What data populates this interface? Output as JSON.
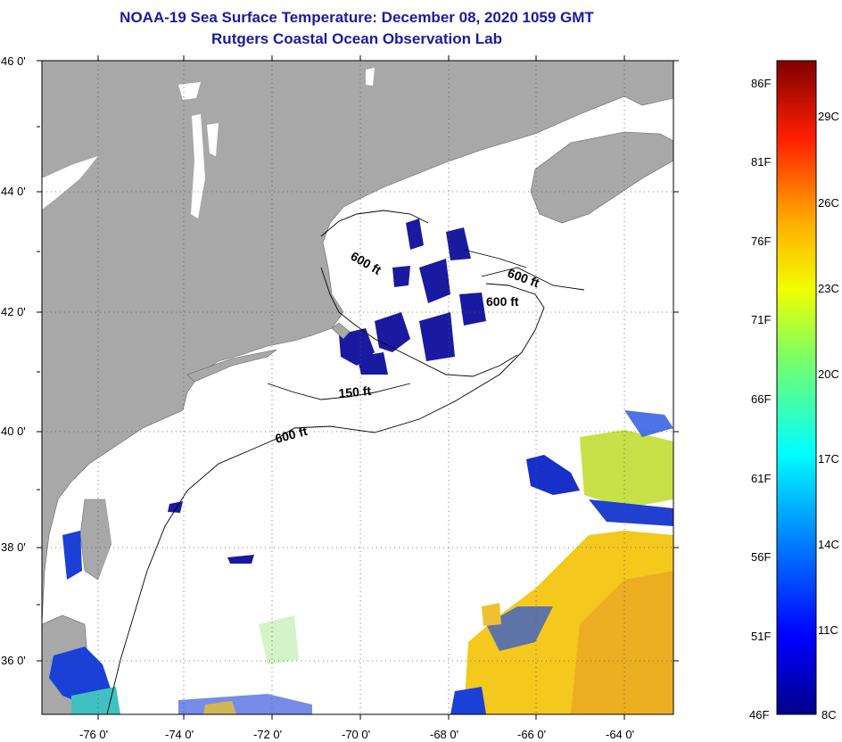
{
  "title": {
    "line1": "NOAA-19 Sea Surface Temperature:  December 08, 2020 1059 GMT",
    "line2": "Rutgers Coastal Ocean Observation Lab"
  },
  "axes": {
    "lat_labels": [
      "46 0'",
      "44 0'",
      "42 0'",
      "40 0'",
      "38 0'",
      "36 0'"
    ],
    "lon_labels": [
      "-76 0'",
      "-74 0'",
      "-72 0'",
      "-70 0'",
      "-68 0'",
      "-66 0'",
      "-64 0'"
    ]
  },
  "contours": {
    "label_600_a": "600 ft",
    "label_600_b": "600 ft",
    "label_600_c": "600 ft",
    "label_150": "150 ft",
    "label_600_d": "600 ft"
  },
  "colorbar": {
    "fahrenheit": [
      "86F",
      "81F",
      "76F",
      "71F",
      "66F",
      "61F",
      "56F",
      "51F",
      "46F"
    ],
    "celsius": [
      "29C",
      "26C",
      "23C",
      "20C",
      "17C",
      "14C",
      "11C",
      "8C"
    ]
  },
  "colors": {
    "land": "#a8a8a8",
    "title": "#1a1aa6",
    "contour": "#000000"
  }
}
